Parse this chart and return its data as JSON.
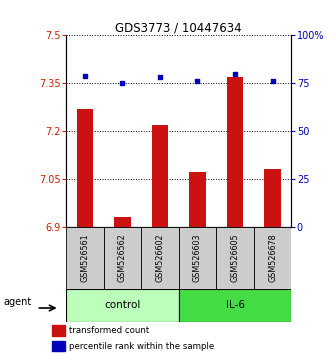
{
  "title": "GDS3773 / 10447634",
  "samples": [
    "GSM526561",
    "GSM526562",
    "GSM526602",
    "GSM526603",
    "GSM526605",
    "GSM526678"
  ],
  "bar_values": [
    7.27,
    6.93,
    7.22,
    7.07,
    7.37,
    7.08
  ],
  "dot_values": [
    79,
    75,
    78,
    76,
    80,
    76
  ],
  "ylim_left": [
    6.9,
    7.5
  ],
  "ylim_right": [
    0,
    100
  ],
  "yticks_left": [
    6.9,
    7.05,
    7.2,
    7.35,
    7.5
  ],
  "yticks_right": [
    0,
    25,
    50,
    75,
    100
  ],
  "ytick_labels_left": [
    "6.9",
    "7.05",
    "7.2",
    "7.35",
    "7.5"
  ],
  "ytick_labels_right": [
    "0",
    "25",
    "50",
    "75",
    "100%"
  ],
  "bar_color": "#cc1111",
  "dot_color": "#0000bb",
  "control_color": "#bbffbb",
  "il6_color": "#44dd44",
  "label_bg_color": "#cccccc",
  "legend_bar_label": "transformed count",
  "legend_dot_label": "percentile rank within the sample",
  "agent_label": "agent",
  "control_label": "control",
  "il6_label": "IL-6",
  "left_axis_color": "#cc2200",
  "right_axis_color": "#0000bb",
  "bar_width": 0.45
}
